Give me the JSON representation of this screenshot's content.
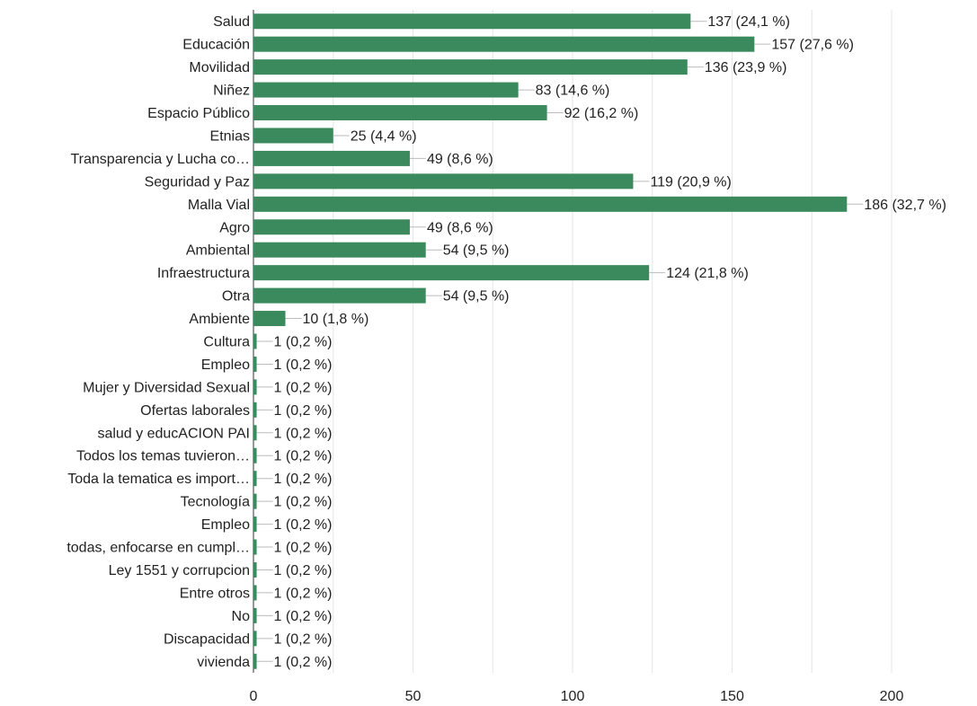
{
  "chart_data": {
    "type": "bar",
    "orientation": "horizontal",
    "grid": true,
    "bar_color": "#3a8a5d",
    "xlim": [
      0,
      200
    ],
    "x_ticks": [
      "0",
      "50",
      "100",
      "150",
      "200"
    ],
    "categories": [
      "Salud",
      "Educación",
      "Movilidad",
      "Niñez",
      "Espacio Público",
      "Etnias",
      "Transparencia y Lucha co…",
      "Seguridad y Paz",
      "Malla Vial",
      "Agro",
      "Ambiental",
      "Infraestructura",
      "Otra",
      "Ambiente",
      "Cultura",
      "Empleo",
      "Mujer y Diversidad Sexual",
      "Ofertas laborales",
      "salud y educACION PAI",
      "Todos los temas tuvieron…",
      "Toda la tematica es import…",
      "Tecnología",
      "Empleo",
      "todas, enfocarse en cumpl…",
      "Ley 1551 y corrupcion",
      "Entre otros",
      "No",
      "Discapacidad",
      "vivienda"
    ],
    "values": [
      137,
      157,
      136,
      83,
      92,
      25,
      49,
      119,
      186,
      49,
      54,
      124,
      54,
      10,
      1,
      1,
      1,
      1,
      1,
      1,
      1,
      1,
      1,
      1,
      1,
      1,
      1,
      1,
      1
    ],
    "data_labels": [
      "137 (24,1 %)",
      "157 (27,6 %)",
      "136 (23,9 %)",
      "83 (14,6 %)",
      "92 (16,2 %)",
      "25 (4,4 %)",
      "49 (8,6 %)",
      "119 (20,9 %)",
      "186 (32,7 %)",
      "49 (8,6 %)",
      "54 (9,5 %)",
      "124 (21,8 %)",
      "54 (9,5 %)",
      "10 (1,8 %)",
      "1 (0,2 %)",
      "1 (0,2 %)",
      "1 (0,2 %)",
      "1 (0,2 %)",
      "1 (0,2 %)",
      "1 (0,2 %)",
      "1 (0,2 %)",
      "1 (0,2 %)",
      "1 (0,2 %)",
      "1 (0,2 %)",
      "1 (0,2 %)",
      "1 (0,2 %)",
      "1 (0,2 %)",
      "1 (0,2 %)",
      "1 (0,2 %)"
    ]
  }
}
